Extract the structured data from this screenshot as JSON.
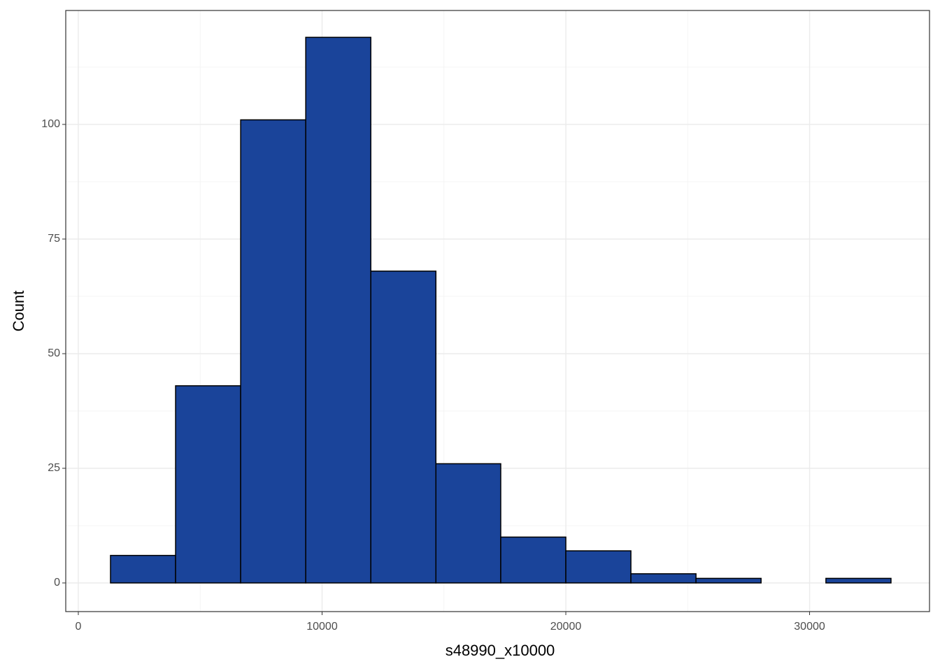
{
  "chart_data": {
    "type": "histogram",
    "x_label": "s48990_x10000",
    "y_label": "Count",
    "bins": [
      1320,
      3990,
      6660,
      9330,
      12000,
      14670,
      17330,
      20000,
      22670,
      25340,
      28010,
      30670,
      33340
    ],
    "values": [
      6,
      43,
      101,
      119,
      68,
      26,
      10,
      7,
      2,
      1,
      0,
      1
    ],
    "color": "#1a449a",
    "edge_color": "#000000",
    "xlim": [
      -516,
      34920
    ],
    "xticks": [
      0,
      10000,
      20000,
      30000
    ],
    "ylim": [
      -6.25,
      124.85
    ],
    "yticks": [
      0,
      25,
      50,
      75,
      100
    ],
    "grid": true,
    "minor_grid": true
  }
}
